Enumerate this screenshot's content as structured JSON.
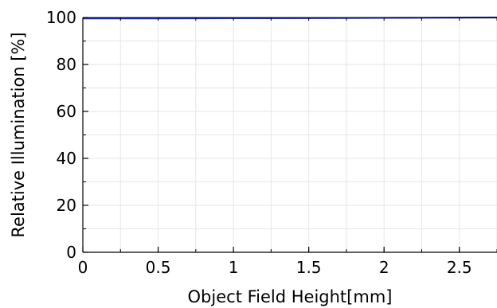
{
  "chart_data": {
    "type": "line",
    "title": "",
    "xlabel": "Object Field Height[mm]",
    "ylabel": "Relative Illumination [%]",
    "xlim": [
      0,
      2.75
    ],
    "ylim": [
      0,
      100
    ],
    "x_ticks": [
      0,
      0.5,
      1,
      1.5,
      2,
      2.5
    ],
    "x_tick_labels": [
      "0",
      "0.5",
      "1",
      "1.5",
      "2",
      "2.5"
    ],
    "y_ticks": [
      0,
      20,
      40,
      60,
      80,
      100
    ],
    "y_tick_labels": [
      "0",
      "20",
      "40",
      "60",
      "80",
      "100"
    ],
    "grid": true,
    "series": [
      {
        "color": "#1f2fb5",
        "x": [
          0,
          0.25,
          0.5,
          0.75,
          1,
          1.25,
          1.5,
          1.75,
          2,
          2.25,
          2.5,
          2.75
        ],
        "y": [
          99.6,
          99.6,
          99.6,
          99.65,
          99.7,
          99.7,
          99.75,
          99.8,
          99.85,
          99.9,
          99.95,
          100
        ]
      }
    ]
  }
}
